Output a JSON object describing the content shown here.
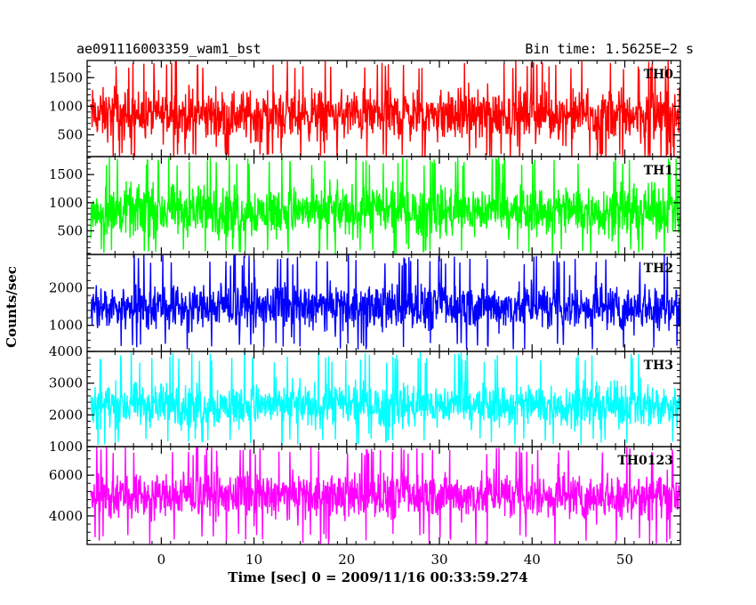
{
  "header": {
    "title": "ae091116003359_wam1_bst",
    "bin_time": "Bin time: 1.5625E−2 s"
  },
  "chart_data": {
    "type": "line",
    "x_range": [
      -8.0,
      56.0
    ],
    "x_ticks": [
      0,
      10,
      20,
      30,
      40,
      50
    ],
    "xlabel": "Time [sec] 0 = 2009/11/16 00:33:59.274",
    "ylabel": "Counts/sec",
    "panels": [
      {
        "name": "TH0",
        "color": "#ff0000",
        "ylim": [
          120,
          1800
        ],
        "yticks": [
          500,
          1000,
          1500
        ],
        "mean": 850,
        "band": [
          250,
          1550
        ],
        "spikes": [
          80,
          1800
        ]
      },
      {
        "name": "TH1",
        "color": "#00ff00",
        "ylim": [
          80,
          1820
        ],
        "yticks": [
          500,
          1000,
          1500
        ],
        "mean": 850,
        "band": [
          240,
          1550
        ],
        "spikes": [
          80,
          1820
        ]
      },
      {
        "name": "TH2",
        "color": "#0000ff",
        "ylim": [
          300,
          2900
        ],
        "yticks": [
          1000,
          2000
        ],
        "mean": 1500,
        "band": [
          650,
          2400
        ],
        "spikes": [
          350,
          2900
        ]
      },
      {
        "name": "TH3",
        "color": "#00ffff",
        "ylim": [
          1000,
          4000
        ],
        "yticks": [
          1000,
          2000,
          3000,
          4000
        ],
        "mean": 2300,
        "band": [
          1400,
          3400
        ],
        "spikes": [
          1050,
          4000
        ]
      },
      {
        "name": "TH0123",
        "color": "#ff00ff",
        "ylim": [
          2600,
          7400
        ],
        "yticks": [
          4000,
          6000
        ],
        "mean": 5000,
        "band": [
          3500,
          6700
        ],
        "spikes": [
          2600,
          7400
        ]
      }
    ]
  }
}
